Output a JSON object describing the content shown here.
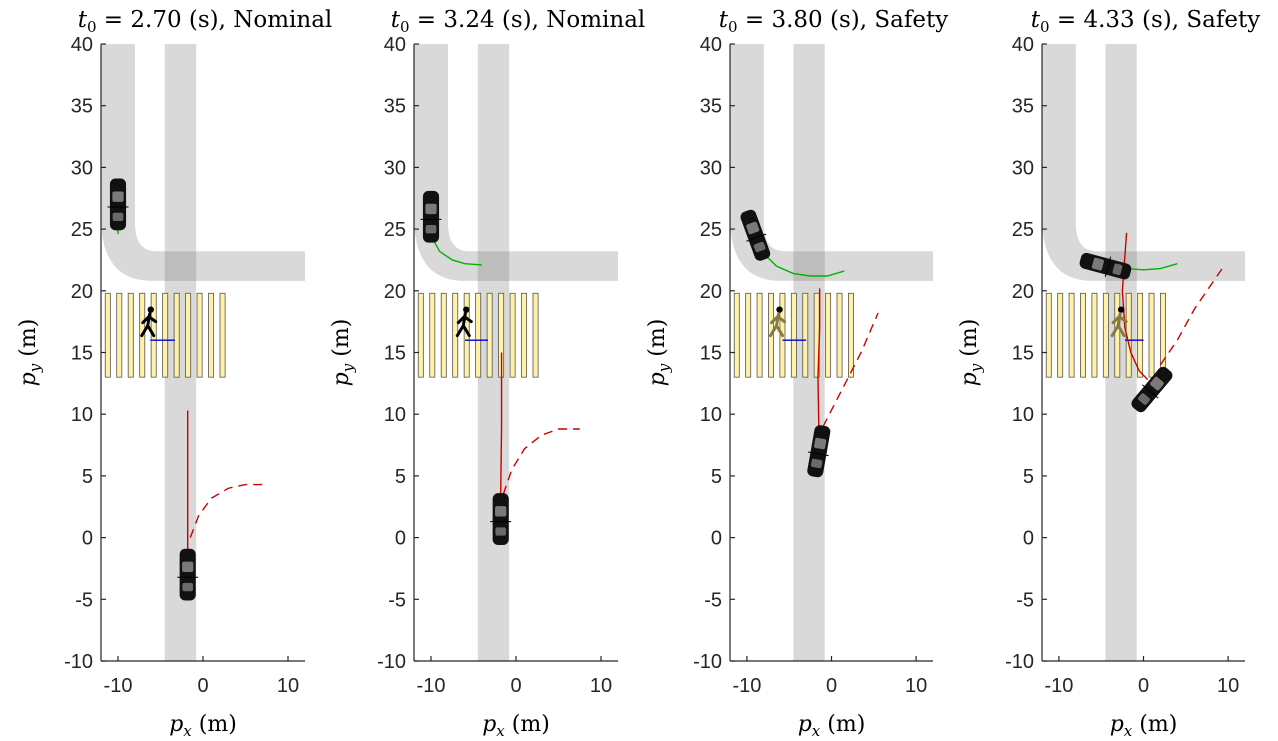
{
  "chart_data": [
    {
      "type": "scatter",
      "title_var": "t",
      "title_sub": "0",
      "title_rest": " = 2.70 (s), Nominal",
      "xlabel_var": "p",
      "xlabel_sub": "x",
      "xlabel_unit": " (m)",
      "ylabel_var": "p",
      "ylabel_sub": "y",
      "ylabel_unit": " (m)",
      "xlim": [
        -12,
        12
      ],
      "ylim": [
        -10,
        40
      ],
      "xticks": [
        -10,
        0,
        10
      ],
      "yticks": [
        -10,
        -5,
        0,
        5,
        10,
        15,
        20,
        25,
        30,
        35,
        40
      ],
      "ego_car": {
        "x": -1.8,
        "y": -3,
        "heading_deg": 90,
        "color": "#111111"
      },
      "other_car": {
        "x": -10,
        "y": 27,
        "heading_deg": 90,
        "color": "#111111"
      },
      "pedestrian": {
        "x": -6.5,
        "y": 17.5,
        "color": "#000000"
      },
      "pedestrian_path": {
        "x": [
          -6.2,
          -3.3
        ],
        "y": [
          16,
          16
        ],
        "color": "#0000cc"
      },
      "ego_planned_path": {
        "x": [
          -1.8,
          -1.8,
          -1.8
        ],
        "y": [
          -1.5,
          5,
          10.3
        ],
        "color": "#cc0000"
      },
      "ego_predicted_path": {
        "x": [
          -1.5,
          -0.5,
          1,
          3,
          5,
          7
        ],
        "y": [
          0,
          1.8,
          3.2,
          4,
          4.3,
          4.3
        ],
        "color": "#cc0000"
      },
      "other_predicted_path": {
        "x": [
          -10,
          -10,
          -10
        ],
        "y": [
          25.5,
          25,
          24.6
        ],
        "color": "#00b300"
      }
    },
    {
      "type": "scatter",
      "title_var": "t",
      "title_sub": "0",
      "title_rest": " = 3.24 (s), Nominal",
      "xlabel_var": "p",
      "xlabel_sub": "x",
      "xlabel_unit": " (m)",
      "ylabel_var": "p",
      "ylabel_sub": "y",
      "ylabel_unit": " (m)",
      "xlim": [
        -12,
        12
      ],
      "ylim": [
        -10,
        40
      ],
      "xticks": [
        -10,
        0,
        10
      ],
      "yticks": [
        -10,
        -5,
        0,
        5,
        10,
        15,
        20,
        25,
        30,
        35,
        40
      ],
      "ego_car": {
        "x": -1.8,
        "y": 1.5,
        "heading_deg": 90,
        "color": "#111111"
      },
      "other_car": {
        "x": -10,
        "y": 26,
        "heading_deg": 90,
        "color": "#111111"
      },
      "pedestrian": {
        "x": -6.2,
        "y": 17.5,
        "color": "#000000"
      },
      "pedestrian_path": {
        "x": [
          -6.0,
          -3.3
        ],
        "y": [
          16,
          16
        ],
        "color": "#0000cc"
      },
      "ego_planned_path": {
        "x": [
          -1.8,
          -1.7,
          -1.7
        ],
        "y": [
          3.5,
          9,
          15
        ],
        "color": "#cc0000"
      },
      "ego_predicted_path": {
        "x": [
          -1.5,
          -0.5,
          1,
          3,
          5,
          7.5
        ],
        "y": [
          3.5,
          5.5,
          7.2,
          8.3,
          8.8,
          8.8
        ],
        "color": "#cc0000"
      },
      "other_predicted_path": {
        "x": [
          -10,
          -9,
          -7.5,
          -6,
          -4
        ],
        "y": [
          24.5,
          23.2,
          22.5,
          22.2,
          22.1
        ],
        "color": "#00b300"
      }
    },
    {
      "type": "scatter",
      "title_var": "t",
      "title_sub": "0",
      "title_rest": " = 3.80 (s), Safety",
      "xlabel_var": "p",
      "xlabel_sub": "x",
      "xlabel_unit": " (m)",
      "ylabel_var": "p",
      "ylabel_sub": "y",
      "ylabel_unit": " (m)",
      "xlim": [
        -12,
        12
      ],
      "ylim": [
        -10,
        40
      ],
      "xticks": [
        -10,
        0,
        10
      ],
      "yticks": [
        -10,
        -5,
        0,
        5,
        10,
        15,
        20,
        25,
        30,
        35,
        40
      ],
      "ego_car": {
        "x": -1.5,
        "y": 7,
        "heading_deg": 80,
        "color": "#111111"
      },
      "other_car": {
        "x": -9,
        "y": 24.5,
        "heading_deg": 110,
        "color": "#111111"
      },
      "pedestrian": {
        "x": -6.5,
        "y": 17.5,
        "color": "#8a7a3a"
      },
      "pedestrian_path": {
        "x": [
          -5.8,
          -3
        ],
        "y": [
          16,
          16
        ],
        "color": "#0000cc"
      },
      "ego_planned_path": {
        "x": [
          -1.5,
          -1.6,
          -1.4,
          -1.4
        ],
        "y": [
          9,
          13,
          17,
          20.2
        ],
        "color": "#cc0000"
      },
      "ego_predicted_path": {
        "x": [
          -1,
          0.5,
          2,
          3.5,
          5.5
        ],
        "y": [
          9,
          11,
          13,
          15,
          18.2
        ],
        "color": "#cc0000"
      },
      "other_predicted_path": {
        "x": [
          -8,
          -6.5,
          -4.5,
          -2.5,
          -0.5,
          1.5
        ],
        "y": [
          23,
          22,
          21.4,
          21.2,
          21.2,
          21.6
        ],
        "color": "#00b300"
      }
    },
    {
      "type": "scatter",
      "title_var": "t",
      "title_sub": "0",
      "title_rest": " = 4.33 (s), Safety",
      "xlabel_var": "p",
      "xlabel_sub": "x",
      "xlabel_unit": " (m)",
      "ylabel_var": "p",
      "ylabel_sub": "y",
      "ylabel_unit": " (m)",
      "xlim": [
        -12,
        12
      ],
      "ylim": [
        -10,
        40
      ],
      "xticks": [
        -10,
        0,
        10
      ],
      "yticks": [
        -10,
        -5,
        0,
        5,
        10,
        15,
        20,
        25,
        30,
        35,
        40
      ],
      "ego_car": {
        "x": 1,
        "y": 12,
        "heading_deg": 50,
        "color": "#111111"
      },
      "other_car": {
        "x": -4.5,
        "y": 22,
        "heading_deg": 165,
        "color": "#111111"
      },
      "pedestrian": {
        "x": -3,
        "y": 17.5,
        "color": "#8a7a3a"
      },
      "pedestrian_path": {
        "x": [
          -2.2,
          0
        ],
        "y": [
          16,
          16
        ],
        "color": "#0000cc"
      },
      "ego_planned_path": {
        "x": [
          -2,
          -2.5,
          -2.2,
          -1.5,
          -0.5,
          0.5
        ],
        "y": [
          24.7,
          20,
          17,
          15,
          13.5,
          12.8
        ],
        "color": "#cc0000"
      },
      "ego_predicted_path": {
        "x": [
          2,
          4,
          6,
          8,
          9.5
        ],
        "y": [
          14,
          16,
          18.5,
          20.5,
          22
        ],
        "color": "#cc0000"
      },
      "other_predicted_path": {
        "x": [
          -2,
          0,
          2,
          4
        ],
        "y": [
          21.8,
          21.7,
          21.8,
          22.2
        ],
        "color": "#00b300"
      }
    }
  ]
}
